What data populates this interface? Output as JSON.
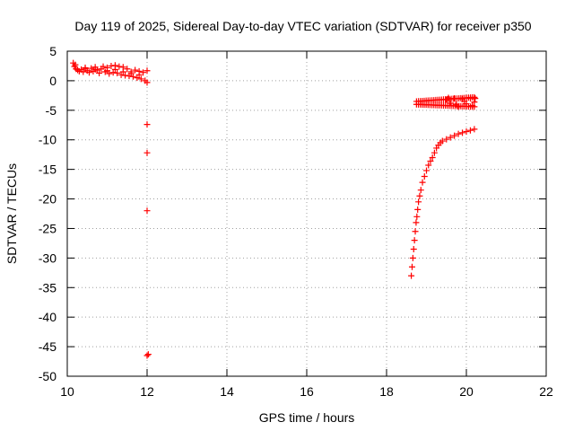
{
  "chart_data": {
    "type": "scatter",
    "title": "Day 119 of 2025, Sidereal Day-to-day VTEC variation (SDTVAR) for receiver p350",
    "xlabel": "GPS time / hours",
    "ylabel": "SDTVAR / TECUs",
    "xlim": [
      10,
      22
    ],
    "ylim": [
      -50,
      5
    ],
    "xticks": [
      10,
      12,
      14,
      16,
      18,
      20,
      22
    ],
    "yticks": [
      5,
      0,
      -5,
      -10,
      -15,
      -20,
      -25,
      -30,
      -35,
      -40,
      -45,
      -50
    ],
    "grid": true,
    "marker": "+",
    "series": [
      {
        "name": "SDTVAR",
        "color": "#ff0000",
        "points": [
          [
            10.15,
            3.0
          ],
          [
            10.18,
            2.4
          ],
          [
            10.22,
            2.0
          ],
          [
            10.26,
            1.8
          ],
          [
            10.3,
            1.6
          ],
          [
            10.35,
            1.9
          ],
          [
            10.4,
            1.5
          ],
          [
            10.45,
            2.2
          ],
          [
            10.5,
            1.7
          ],
          [
            10.55,
            1.4
          ],
          [
            10.6,
            2.1
          ],
          [
            10.65,
            1.6
          ],
          [
            10.7,
            2.3
          ],
          [
            10.75,
            1.8
          ],
          [
            10.8,
            1.3
          ],
          [
            10.85,
            2.0
          ],
          [
            10.9,
            2.4
          ],
          [
            10.95,
            1.5
          ],
          [
            11.0,
            2.2
          ],
          [
            11.05,
            1.2
          ],
          [
            11.1,
            2.5
          ],
          [
            11.15,
            1.4
          ],
          [
            11.2,
            2.6
          ],
          [
            11.25,
            1.3
          ],
          [
            11.3,
            2.4
          ],
          [
            11.35,
            1.0
          ],
          [
            11.4,
            2.3
          ],
          [
            11.45,
            0.9
          ],
          [
            11.5,
            2.0
          ],
          [
            11.55,
            0.8
          ],
          [
            11.6,
            1.5
          ],
          [
            11.65,
            0.7
          ],
          [
            11.7,
            1.8
          ],
          [
            11.75,
            0.5
          ],
          [
            11.8,
            1.6
          ],
          [
            11.85,
            0.3
          ],
          [
            11.9,
            1.4
          ],
          [
            11.95,
            0.0
          ],
          [
            12.0,
            1.7
          ],
          [
            12.0,
            -0.3
          ],
          [
            10.2,
            2.7
          ],
          [
            10.45,
            2.0
          ],
          [
            10.7,
            1.9
          ],
          [
            11.0,
            1.7
          ],
          [
            11.2,
            1.9
          ],
          [
            11.4,
            1.5
          ],
          [
            11.6,
            1.2
          ],
          [
            11.8,
            1.0
          ],
          [
            12.0,
            -7.4
          ],
          [
            12.0,
            -12.2
          ],
          [
            12.0,
            -22.0
          ],
          [
            12.0,
            -46.5
          ],
          [
            12.03,
            -46.3
          ],
          [
            18.62,
            -33.0
          ],
          [
            18.64,
            -31.5
          ],
          [
            18.66,
            -30.0
          ],
          [
            18.68,
            -28.5
          ],
          [
            18.7,
            -27.0
          ],
          [
            18.72,
            -25.5
          ],
          [
            18.74,
            -24.0
          ],
          [
            18.76,
            -23.0
          ],
          [
            18.78,
            -21.8
          ],
          [
            18.8,
            -20.5
          ],
          [
            18.83,
            -19.5
          ],
          [
            18.86,
            -18.5
          ],
          [
            18.9,
            -17.2
          ],
          [
            18.95,
            -16.2
          ],
          [
            19.0,
            -15.2
          ],
          [
            19.05,
            -14.3
          ],
          [
            19.1,
            -13.6
          ],
          [
            19.15,
            -13.0
          ],
          [
            19.2,
            -12.2
          ],
          [
            19.25,
            -11.4
          ],
          [
            19.3,
            -10.9
          ],
          [
            19.35,
            -10.5
          ],
          [
            19.4,
            -10.2
          ],
          [
            19.5,
            -9.9
          ],
          [
            19.6,
            -9.6
          ],
          [
            19.7,
            -9.3
          ],
          [
            19.8,
            -9.0
          ],
          [
            19.9,
            -8.8
          ],
          [
            20.0,
            -8.6
          ],
          [
            20.1,
            -8.4
          ],
          [
            20.2,
            -8.2
          ],
          [
            19.5,
            -3.2
          ],
          [
            19.6,
            -3.8
          ],
          [
            19.7,
            -3.0
          ],
          [
            19.8,
            -4.4
          ],
          [
            19.9,
            -3.1
          ],
          [
            20.0,
            -3.9
          ],
          [
            20.1,
            -3.0
          ],
          [
            20.15,
            -4.2
          ],
          [
            20.2,
            -3.6
          ],
          [
            20.22,
            -3.0
          ],
          [
            19.55,
            -2.9
          ],
          [
            19.75,
            -4.0
          ],
          [
            19.95,
            -3.5
          ]
        ],
        "bands": [
          {
            "x": [
              18.75,
              20.2
            ],
            "y_start": [
              -4.0,
              -4.4
            ],
            "y_end": [
              -3.5,
              -2.8
            ]
          }
        ]
      }
    ]
  }
}
